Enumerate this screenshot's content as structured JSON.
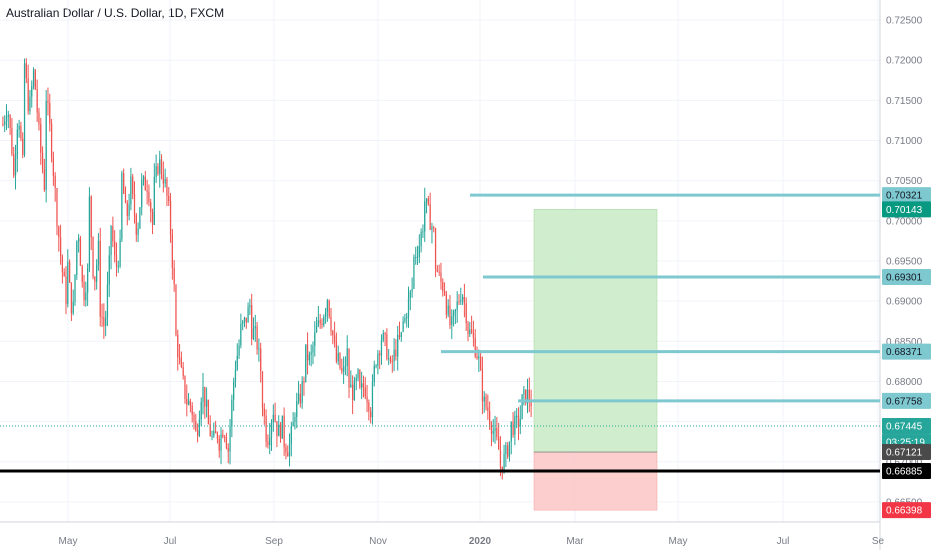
{
  "header": {
    "title": "Australian Dollar / U.S. Dollar, 1D, FXCM"
  },
  "chart_data": {
    "type": "candlestick",
    "title": "Australian Dollar / U.S. Dollar, 1D, FXCM",
    "ylim": [
      0.6625,
      0.7275
    ],
    "y_ticks": [
      0.665,
      0.67,
      0.675,
      0.68,
      0.685,
      0.69,
      0.695,
      0.7,
      0.705,
      0.71,
      0.715,
      0.72,
      0.725
    ],
    "y_tick_labels": [
      "0.66500",
      "0.67000",
      "0.67500",
      "0.68000",
      "0.68500",
      "0.69000",
      "0.69500",
      "0.70000",
      "0.70500",
      "0.71000",
      "0.71500",
      "0.72000",
      "0.72500"
    ],
    "x_ticks": [
      "May",
      "Jul",
      "Sep",
      "Nov",
      "2020",
      "Mar",
      "May",
      "Jul",
      "Se"
    ],
    "colors": {
      "up": "#26a69a",
      "down": "#ef5350",
      "level_line": "#7ec8d0",
      "support": "#000000",
      "target_zone": "#c8ebc4",
      "stop_zone": "#fbc6c6"
    },
    "price_path": [
      [
        0.712,
        0.7145,
        0.709
      ],
      [
        0.7055,
        0.714,
        0.707
      ],
      [
        0.7195,
        0.7135,
        0.7185
      ],
      [
        0.7165,
        0.7095,
        0.7045
      ],
      [
        0.7155,
        0.7105,
        0.7035
      ],
      [
        0.7005,
        0.6945,
        0.6905
      ],
      [
        0.6945,
        0.687,
        0.6975
      ],
      [
        0.6985,
        0.6905,
        0.6935
      ],
      [
        0.7025,
        0.692,
        0.6965
      ],
      [
        0.689,
        0.6865,
        0.6945
      ],
      [
        0.6995,
        0.694,
        0.6965
      ],
      [
        0.7055,
        0.7,
        0.7045
      ],
      [
        0.7025,
        0.6985,
        0.7045
      ],
      [
        0.7045,
        0.7045,
        0.6995
      ],
      [
        0.7045,
        0.7075,
        0.7055
      ],
      [
        0.7045,
        0.7005,
        0.6915
      ],
      [
        0.6855,
        0.6815,
        0.6785
      ],
      [
        0.6775,
        0.677,
        0.6735
      ],
      [
        0.6745,
        0.6795,
        0.6765
      ],
      [
        0.6745,
        0.6725,
        0.6735
      ],
      [
        0.6725,
        0.6745,
        0.6715
      ],
      [
        0.6745,
        0.6815,
        0.6845
      ],
      [
        0.6865,
        0.6875,
        0.6895
      ],
      [
        0.6865,
        0.6855,
        0.6815
      ],
      [
        0.6775,
        0.6725,
        0.6755
      ],
      [
        0.6765,
        0.6735,
        0.6745
      ],
      [
        0.6725,
        0.6715,
        0.6745
      ],
      [
        0.6765,
        0.6775,
        0.6805
      ],
      [
        0.6835,
        0.6825,
        0.6855
      ],
      [
        0.6865,
        0.6875,
        0.6895
      ],
      [
        0.6905,
        0.6865,
        0.6825
      ],
      [
        0.6825,
        0.6805,
        0.6835
      ],
      [
        0.6795,
        0.6785,
        0.6805
      ],
      [
        0.6785,
        0.6795,
        0.6775
      ],
      [
        0.6765,
        0.6825,
        0.6845
      ],
      [
        0.6855,
        0.6845,
        0.6815
      ],
      [
        0.6825,
        0.6845,
        0.6855
      ],
      [
        0.6865,
        0.6895,
        0.6915
      ],
      [
        0.6925,
        0.6965,
        0.6995
      ],
      [
        0.7025,
        0.7005,
        0.6985
      ],
      [
        0.6945,
        0.6925,
        0.6915
      ],
      [
        0.6895,
        0.6865,
        0.6885
      ],
      [
        0.6895,
        0.6915,
        0.6885
      ],
      [
        0.6865,
        0.6855,
        0.6835
      ],
      [
        0.6825,
        0.6775,
        0.6765
      ],
      [
        0.6755,
        0.6735,
        0.6715
      ],
      [
        0.6695,
        0.6705,
        0.6725
      ],
      [
        0.6745,
        0.6745,
        0.6755
      ],
      [
        0.6775,
        0.6785,
        0.6775
      ]
    ],
    "lows": [
      0.7045,
      0.7035,
      0.7045,
      0.699,
      0.6945,
      0.6855,
      0.6885,
      0.6855,
      0.6895,
      0.6845,
      0.6925,
      0.6975,
      0.6965,
      0.6975,
      0.7005,
      0.6905,
      0.6765,
      0.6715,
      0.6695,
      0.6695,
      0.6685,
      0.6705,
      0.6805,
      0.6805,
      0.6705,
      0.6715,
      0.6685,
      0.6745,
      0.6815,
      0.6855,
      0.6815,
      0.6795,
      0.6765,
      0.6745,
      0.6755,
      0.6805,
      0.6805,
      0.6875,
      0.6955,
      0.6965,
      0.6905,
      0.6855,
      0.6865,
      0.6825,
      0.6755,
      0.6705,
      0.6685,
      0.6715,
      0.6735
    ],
    "highs": [
      0.7155,
      0.7185,
      0.7205,
      0.7175,
      0.7165,
      0.7025,
      0.6995,
      0.7005,
      0.7035,
      0.6995,
      0.7015,
      0.7065,
      0.7065,
      0.7075,
      0.7085,
      0.7055,
      0.6875,
      0.6805,
      0.6805,
      0.6765,
      0.6755,
      0.6855,
      0.6905,
      0.6905,
      0.6785,
      0.6785,
      0.6765,
      0.6815,
      0.6865,
      0.6905,
      0.6925,
      0.6855,
      0.6815,
      0.6805,
      0.6855,
      0.6875,
      0.6875,
      0.6925,
      0.7005,
      0.7035,
      0.6965,
      0.6915,
      0.6935,
      0.6895,
      0.6835,
      0.6765,
      0.6745,
      0.6775,
      0.6795
    ],
    "levels": [
      {
        "label": "0.70321",
        "value": 0.70321,
        "box_color": "#7ec8d0"
      },
      {
        "label": "0.69301",
        "value": 0.69301,
        "box_color": "#7ec8d0"
      },
      {
        "label": "0.68371",
        "value": 0.68371,
        "box_color": "#7ec8d0"
      },
      {
        "label": "0.67758",
        "value": 0.67758,
        "box_color": "#7ec8d0"
      }
    ],
    "support_level": {
      "label": "0.66885",
      "value": 0.66885
    },
    "target_label": {
      "label": "0.70143",
      "value": 0.70143,
      "box_color": "#089981"
    },
    "stop_label": {
      "label": "0.66398",
      "value": 0.66398,
      "box_color": "#f23645"
    },
    "current_price": {
      "label": "0.67445",
      "value": 0.67445,
      "box_color": "#26a69a"
    },
    "countdown": "03:25:19",
    "entry_label": {
      "label": "0.67121",
      "value": 0.67121,
      "box_color": "#4a4a4a"
    }
  }
}
